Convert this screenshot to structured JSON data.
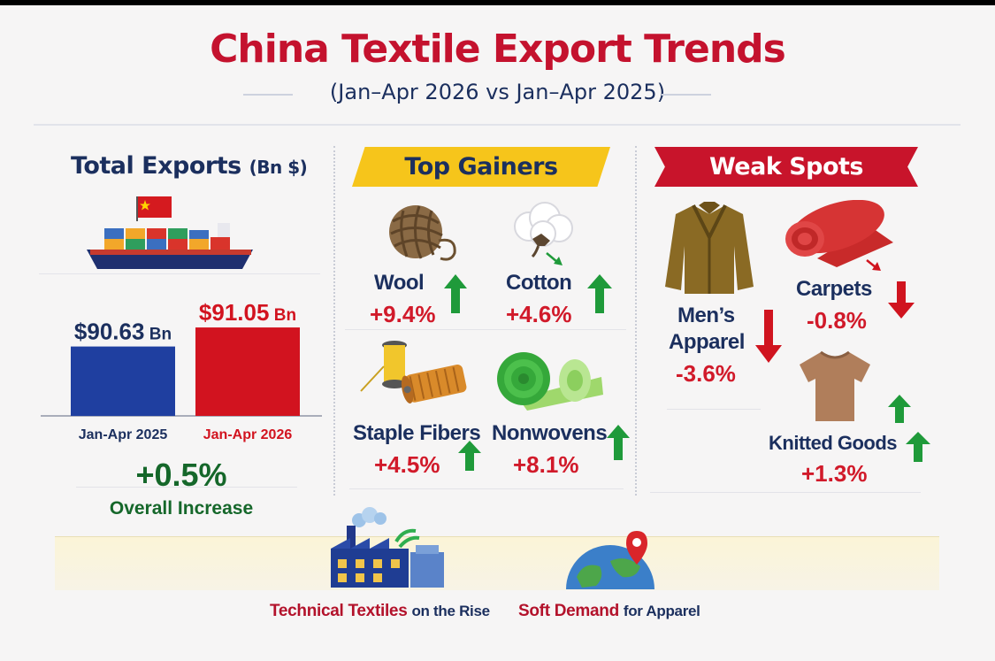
{
  "title": "China Textile Export Trends",
  "subtitle": "(Jan–Apr 2026 vs Jan–Apr 2025)",
  "total_exports": {
    "title": "Total Exports",
    "unit": "(Bn $)",
    "overall_change": "+0.5%",
    "overall_label": "Overall Increase"
  },
  "top_gainers": {
    "banner": "Top Gainers",
    "items": [
      {
        "name": "Wool",
        "change": "+9.4%"
      },
      {
        "name": "Cotton",
        "change": "+4.6%"
      },
      {
        "name": "Staple Fibers",
        "change": "+4.5%"
      },
      {
        "name": "Nonwovens",
        "change": "+8.1%"
      }
    ]
  },
  "weak_spots": {
    "banner": "Weak Spots",
    "items": [
      {
        "name_line1": "Men’s",
        "name_line2": "Apparel",
        "change": "-3.6%"
      },
      {
        "name": "Carpets",
        "change": "-0.8%"
      },
      {
        "name": "Knitted Goods",
        "change": "+1.3%"
      }
    ]
  },
  "bottom": {
    "left_highlight": "Technical Textiles",
    "left_rest": "on the Rise",
    "right_highlight": "Soft Demand",
    "right_rest": "for Apparel"
  },
  "colors": {
    "title_red": "#c4122e",
    "navy": "#1b2f5e",
    "bar_2025": "#1f3fa0",
    "bar_2026": "#d2131f",
    "up_green": "#1f9a3a",
    "down_red": "#d0141f",
    "banner_yellow": "#f6c51b",
    "banner_red": "#c8142b"
  },
  "icons": [
    "cargo-ship-icon",
    "china-flag-icon",
    "yarn-ball-icon",
    "cotton-boll-icon",
    "thread-spool-icon",
    "fabric-roll-icon",
    "jacket-icon",
    "carpet-roll-icon",
    "tshirt-icon",
    "factory-icon",
    "globe-pin-icon",
    "arrow-up-icon",
    "arrow-down-icon"
  ],
  "chart_data": {
    "type": "bar",
    "title": "Total Exports (Bn $)",
    "categories": [
      "Jan-Apr 2025",
      "Jan-Apr 2026"
    ],
    "values": [
      90.63,
      91.05
    ],
    "value_labels": [
      "$90.63 Bn",
      "$91.05 Bn"
    ],
    "ylim": [
      89.1,
      91.5
    ],
    "grid": false,
    "legend": "none"
  }
}
